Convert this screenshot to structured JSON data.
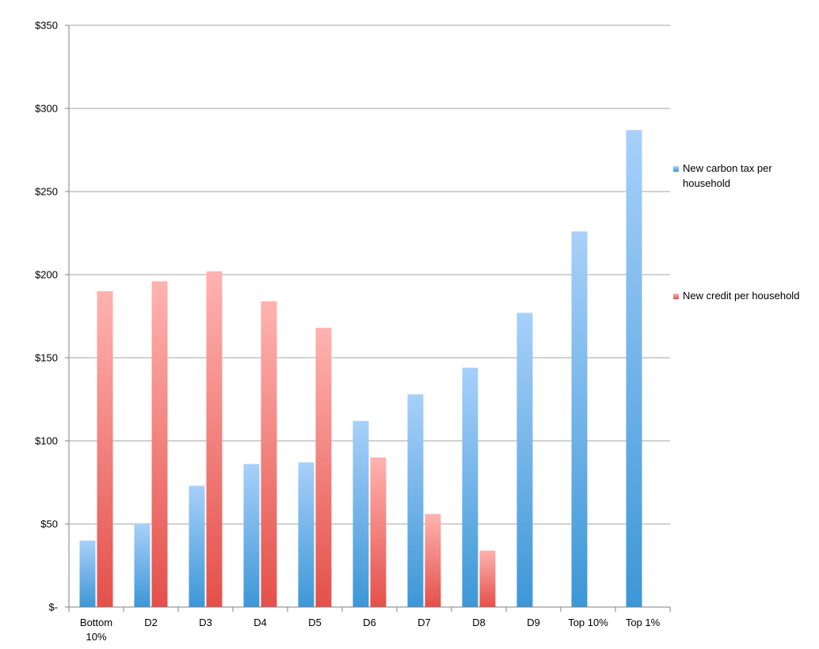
{
  "chart_data": {
    "type": "bar",
    "title": "",
    "xlabel": "",
    "ylabel": "",
    "ylim": [
      0,
      350
    ],
    "yticks": [
      0,
      50,
      100,
      150,
      200,
      250,
      300,
      350
    ],
    "ytick_labels": [
      "$-",
      "$50",
      "$100",
      "$150",
      "$200",
      "$250",
      "$300",
      "$350"
    ],
    "grid": true,
    "legend_position": "right",
    "categories": [
      "Bottom 10%",
      "D2",
      "D3",
      "D4",
      "D5",
      "D6",
      "D7",
      "D8",
      "D9",
      "Top 10%",
      "Top 1%"
    ],
    "category_lines": [
      [
        "Bottom",
        "10%"
      ],
      [
        "D2"
      ],
      [
        "D3"
      ],
      [
        "D4"
      ],
      [
        "D5"
      ],
      [
        "D6"
      ],
      [
        "D7"
      ],
      [
        "D8"
      ],
      [
        "D9"
      ],
      [
        "Top 10%"
      ],
      [
        "Top 1%"
      ]
    ],
    "series": [
      {
        "name": "New carbon tax per household",
        "legend_lines": [
          "New carbon tax per",
          "household"
        ],
        "color_light": "#a8d0fa",
        "color_dark": "#3c97d6",
        "values": [
          40,
          50,
          73,
          86,
          87,
          112,
          128,
          144,
          177,
          226,
          287
        ]
      },
      {
        "name": "New credit per household",
        "legend_lines": [
          "New credit per household"
        ],
        "color_light": "#ffb3b0",
        "color_dark": "#e4504a",
        "values": [
          190,
          196,
          202,
          184,
          168,
          90,
          56,
          34,
          null,
          null,
          null
        ]
      }
    ]
  }
}
